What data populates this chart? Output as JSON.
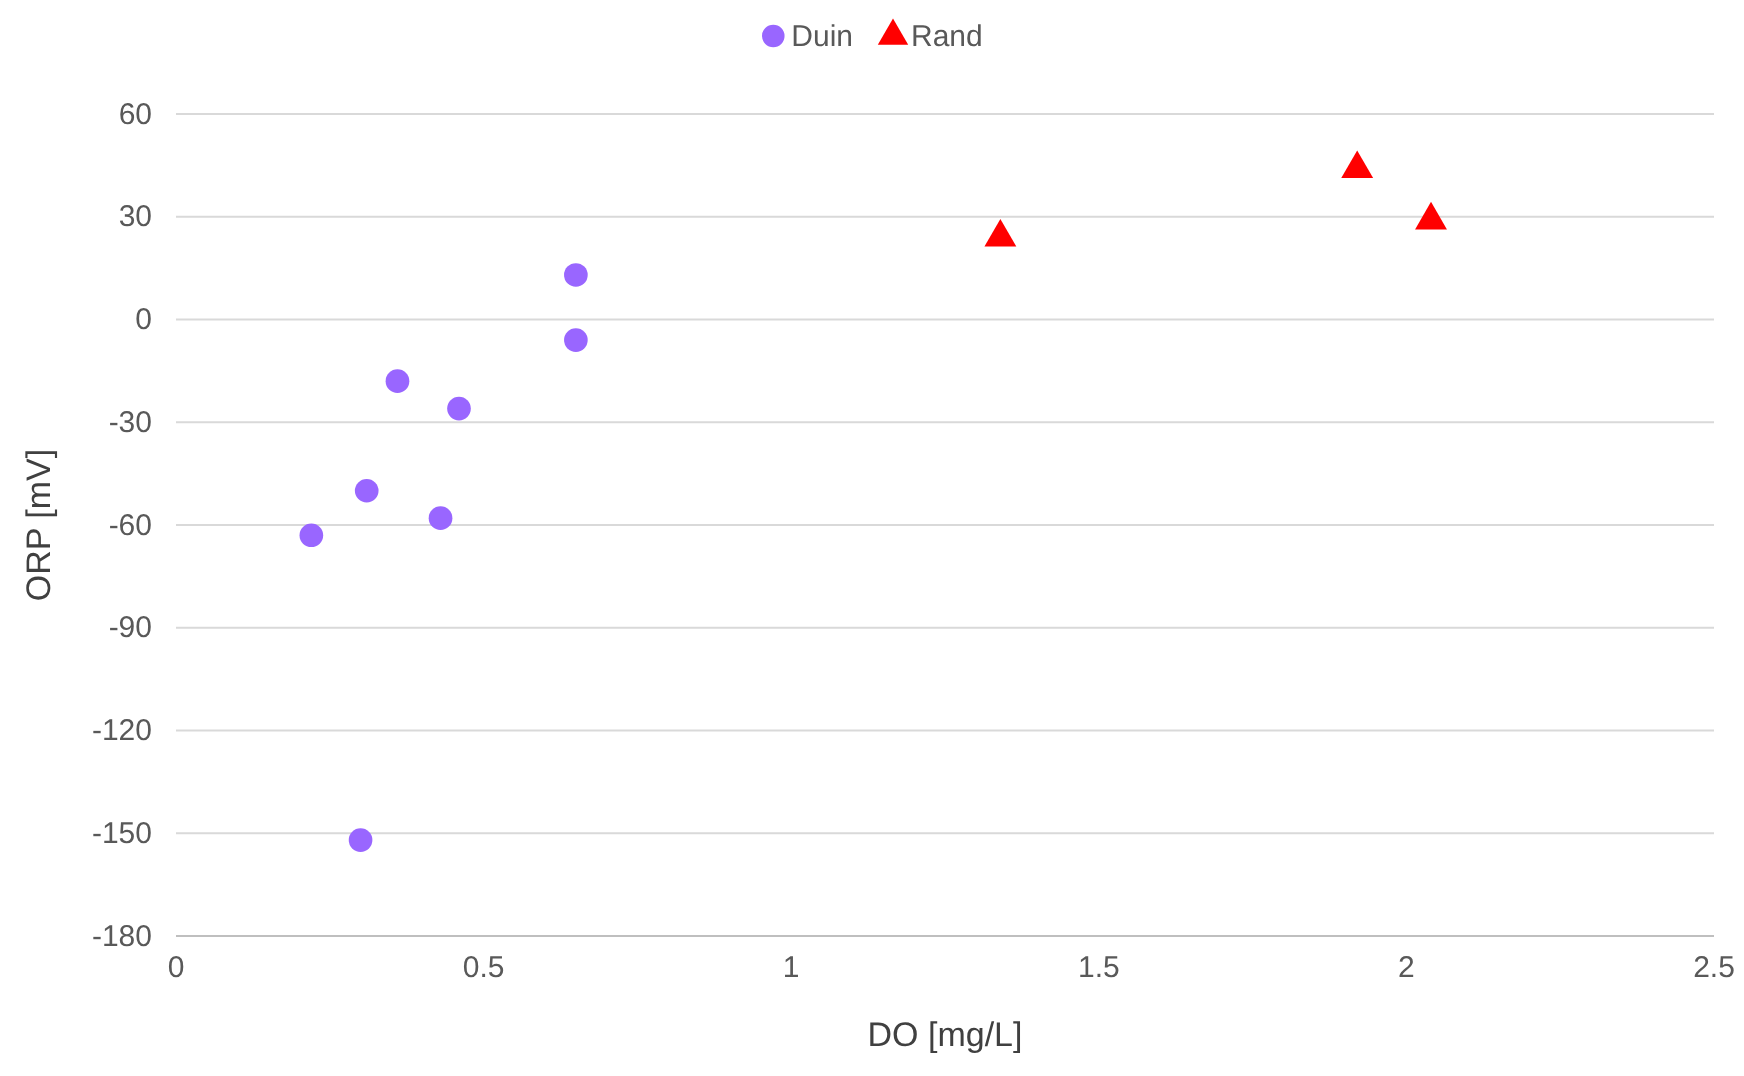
{
  "chart_data": {
    "type": "scatter",
    "xlabel": "DO [mg/L]",
    "ylabel": "ORP [mV]",
    "series": [
      {
        "name": "Duin",
        "color": "#9966ff",
        "marker": "circle",
        "x": [
          0.22,
          0.31,
          0.36,
          0.46,
          0.43,
          0.3,
          0.65,
          0.65
        ],
        "values": [
          -63,
          -50,
          -18,
          -26,
          -58,
          -152,
          -6,
          13
        ]
      },
      {
        "name": "Rand",
        "color": "#ff0000",
        "marker": "triangle",
        "x": [
          1.34,
          1.92,
          2.04
        ],
        "values": [
          24,
          44,
          29
        ]
      }
    ],
    "xlim": [
      0,
      2.5
    ],
    "xticks": [
      0,
      0.5,
      1,
      1.5,
      2,
      2.5
    ],
    "ylim": [
      -180,
      60
    ],
    "yticks": [
      -180,
      -150,
      -120,
      -90,
      -60,
      -30,
      0,
      30,
      60
    ],
    "grid": "y",
    "legend": "top"
  }
}
